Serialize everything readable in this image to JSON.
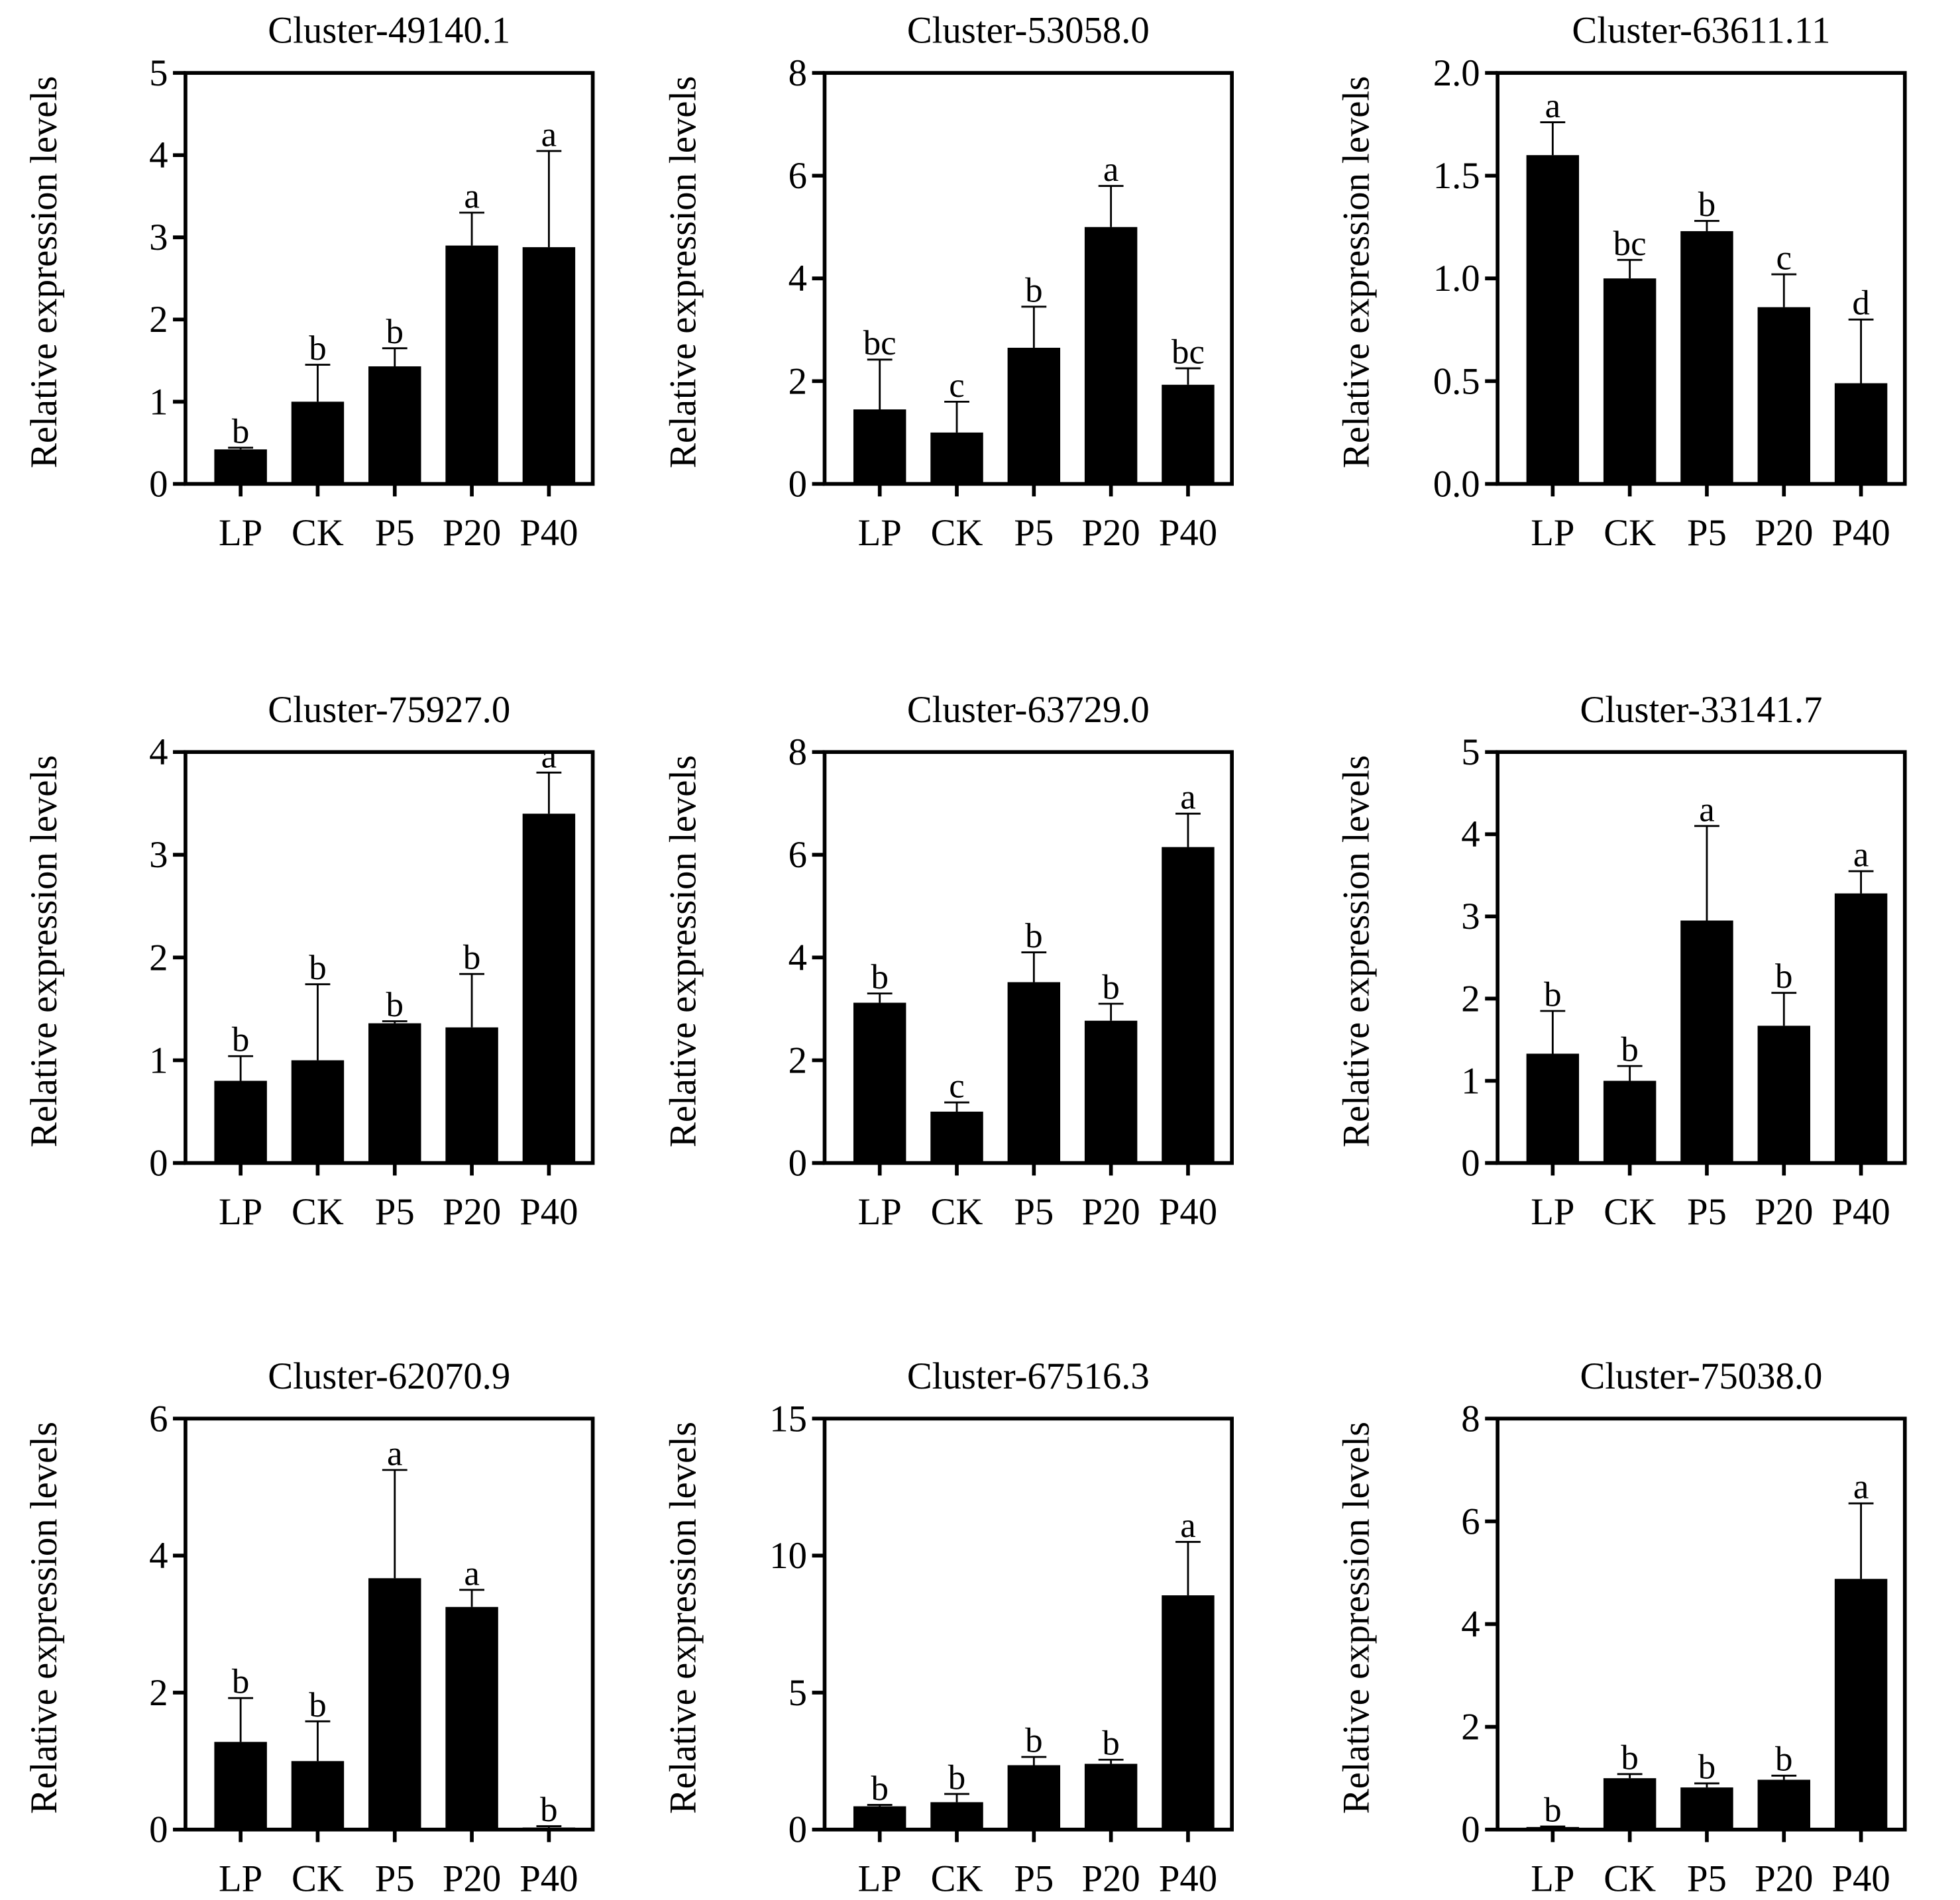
{
  "chart_data": [
    {
      "type": "bar",
      "title": "Cluster-49140.1",
      "ylabel": "Relative expression levels",
      "categories": [
        "LP",
        "CK",
        "P5",
        "P20",
        "P40"
      ],
      "values": [
        0.42,
        1.0,
        1.43,
        2.9,
        2.88
      ],
      "error_upper": [
        0.44,
        1.45,
        1.65,
        3.3,
        4.05
      ],
      "letters": [
        "b",
        "b",
        "b",
        "a",
        "a"
      ],
      "ylim": [
        0,
        5
      ],
      "yticks": [
        "0",
        "1",
        "2",
        "3",
        "4",
        "5"
      ]
    },
    {
      "type": "bar",
      "title": "Cluster-53058.0",
      "ylabel": "Relative expression levels",
      "categories": [
        "LP",
        "CK",
        "P5",
        "P20",
        "P40"
      ],
      "values": [
        1.45,
        1.0,
        2.65,
        5.0,
        1.93
      ],
      "error_upper": [
        2.42,
        1.6,
        3.45,
        5.8,
        2.25
      ],
      "letters": [
        "bc",
        "c",
        "b",
        "a",
        "bc"
      ],
      "ylim": [
        0,
        8
      ],
      "yticks": [
        "0",
        "2",
        "4",
        "6",
        "8"
      ]
    },
    {
      "type": "bar",
      "title": "Cluster-63611.11",
      "ylabel": "Relative expression levels",
      "categories": [
        "LP",
        "CK",
        "P5",
        "P20",
        "P40"
      ],
      "values": [
        1.6,
        1.0,
        1.23,
        0.86,
        0.49
      ],
      "error_upper": [
        1.76,
        1.09,
        1.28,
        1.02,
        0.8
      ],
      "letters": [
        "a",
        "bc",
        "b",
        "c",
        "d"
      ],
      "ylim": [
        0,
        2
      ],
      "yticks": [
        "0.0",
        "0.5",
        "1.0",
        "1.5",
        "2.0"
      ]
    },
    {
      "type": "bar",
      "title": "Cluster-75927.0",
      "ylabel": "Relative expression levels",
      "categories": [
        "LP",
        "CK",
        "P5",
        "P20",
        "P40"
      ],
      "values": [
        0.8,
        1.0,
        1.36,
        1.32,
        3.4
      ],
      "error_upper": [
        1.04,
        1.74,
        1.38,
        1.84,
        3.8
      ],
      "letters": [
        "b",
        "b",
        "b",
        "b",
        "a"
      ],
      "ylim": [
        0,
        4
      ],
      "yticks": [
        "0",
        "1",
        "2",
        "3",
        "4"
      ]
    },
    {
      "type": "bar",
      "title": "Cluster-63729.0",
      "ylabel": "Relative expression levels",
      "categories": [
        "LP",
        "CK",
        "P5",
        "P20",
        "P40"
      ],
      "values": [
        3.12,
        1.0,
        3.52,
        2.77,
        6.15
      ],
      "error_upper": [
        3.3,
        1.18,
        4.1,
        3.1,
        6.8
      ],
      "letters": [
        "b",
        "c",
        "b",
        "b",
        "a"
      ],
      "ylim": [
        0,
        8
      ],
      "yticks": [
        "0",
        "2",
        "4",
        "6",
        "8"
      ]
    },
    {
      "type": "bar",
      "title": "Cluster-33141.7",
      "ylabel": "Relative expression levels",
      "categories": [
        "LP",
        "CK",
        "P5",
        "P20",
        "P40"
      ],
      "values": [
        1.33,
        1.0,
        2.95,
        1.67,
        3.28
      ],
      "error_upper": [
        1.85,
        1.18,
        4.1,
        2.07,
        3.55
      ],
      "letters": [
        "b",
        "b",
        "a",
        "b",
        "a"
      ],
      "ylim": [
        0,
        5
      ],
      "yticks": [
        "0",
        "1",
        "2",
        "3",
        "4",
        "5"
      ]
    },
    {
      "type": "bar",
      "title": "Cluster-62070.9",
      "ylabel": "Relative expression levels",
      "categories": [
        "LP",
        "CK",
        "P5",
        "P20",
        "P40"
      ],
      "values": [
        1.28,
        1.0,
        3.67,
        3.25,
        0.03
      ],
      "error_upper": [
        1.92,
        1.58,
        5.25,
        3.5,
        0.05
      ],
      "letters": [
        "b",
        "b",
        "a",
        "a",
        "b"
      ],
      "ylim": [
        0,
        6
      ],
      "yticks": [
        "0",
        "2",
        "4",
        "6"
      ]
    },
    {
      "type": "bar",
      "title": "Cluster-67516.3",
      "ylabel": "Relative expression levels",
      "categories": [
        "LP",
        "CK",
        "P5",
        "P20",
        "P40"
      ],
      "values": [
        0.85,
        1.0,
        2.35,
        2.4,
        8.55
      ],
      "error_upper": [
        0.9,
        1.3,
        2.65,
        2.55,
        10.5
      ],
      "letters": [
        "b",
        "b",
        "b",
        "b",
        "a"
      ],
      "ylim": [
        0,
        15
      ],
      "yticks": [
        "0",
        "5",
        "10",
        "15"
      ]
    },
    {
      "type": "bar",
      "title": "Cluster-75038.0",
      "ylabel": "Relative expression levels",
      "categories": [
        "LP",
        "CK",
        "P5",
        "P20",
        "P40"
      ],
      "values": [
        0.05,
        1.0,
        0.82,
        0.97,
        4.88
      ],
      "error_upper": [
        0.06,
        1.08,
        0.9,
        1.05,
        6.35
      ],
      "letters": [
        "b",
        "b",
        "b",
        "b",
        "a"
      ],
      "ylim": [
        0,
        8
      ],
      "yticks": [
        "0",
        "2",
        "4",
        "6",
        "8"
      ]
    }
  ]
}
